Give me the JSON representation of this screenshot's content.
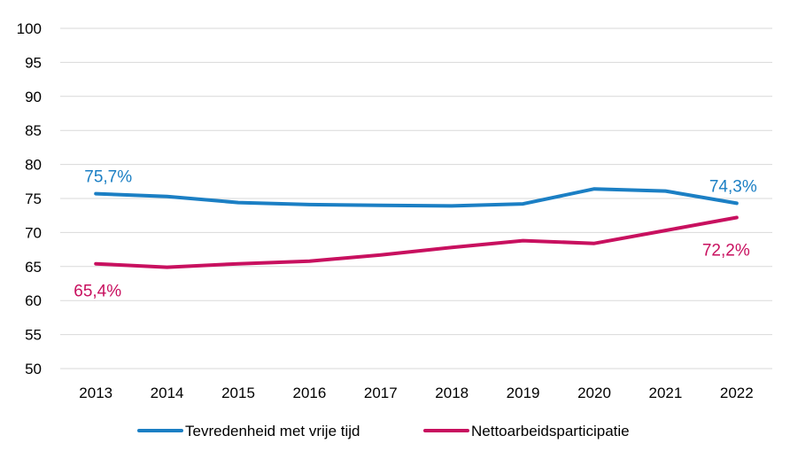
{
  "chart_data": {
    "type": "line",
    "categories": [
      "2013",
      "2014",
      "2015",
      "2016",
      "2017",
      "2018",
      "2019",
      "2020",
      "2021",
      "2022"
    ],
    "ylim": [
      50,
      100
    ],
    "yticks": [
      "50",
      "55",
      "60",
      "65",
      "70",
      "75",
      "80",
      "85",
      "90",
      "95",
      "100"
    ],
    "grid": true,
    "legend_position": "bottom",
    "series": [
      {
        "name": "Tevredenheid met vrije tijd",
        "color": "#1b7fc4",
        "values": [
          75.7,
          75.3,
          74.4,
          74.1,
          74.0,
          73.9,
          74.2,
          76.4,
          76.1,
          74.3
        ],
        "labels": [
          {
            "index": 0,
            "text": "75,7%"
          },
          {
            "index": 9,
            "text": "74,3%"
          }
        ]
      },
      {
        "name": "Nettoarbeidsparticipatie",
        "color": "#c8105f",
        "values": [
          65.4,
          64.9,
          65.4,
          65.8,
          66.7,
          67.8,
          68.8,
          68.4,
          70.3,
          72.2
        ],
        "labels": [
          {
            "index": 0,
            "text": "65,4%"
          },
          {
            "index": 9,
            "text": "72,2%"
          }
        ]
      }
    ]
  }
}
